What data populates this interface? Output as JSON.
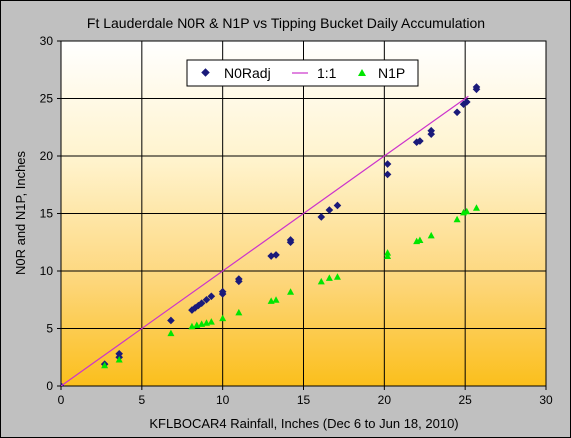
{
  "chart_data": {
    "type": "scatter",
    "title": "Ft Lauderdale N0R & N1P vs Tipping Bucket Daily Accumulation",
    "xlabel": "KFLBOCAR4 Rainfall, Inches (Dec 6 to Jun 18, 2010)",
    "ylabel": "N0R and N1P, Inches",
    "xlim": [
      0,
      30
    ],
    "ylim": [
      0,
      30
    ],
    "xticks": [
      "0",
      "5",
      "10",
      "15",
      "20",
      "25",
      "30"
    ],
    "yticks": [
      "0",
      "5",
      "10",
      "15",
      "20",
      "25",
      "30"
    ],
    "grid": true,
    "legend_position": "top-center",
    "background": "gradient white (top) to orange (bottom)",
    "series": [
      {
        "name": "N0Radj",
        "marker": "diamond",
        "color": "#1a1a7a",
        "points": [
          [
            0,
            0
          ],
          [
            2.7,
            1.9
          ],
          [
            3.6,
            2.5
          ],
          [
            3.6,
            2.8
          ],
          [
            6.8,
            5.7
          ],
          [
            8.1,
            6.6
          ],
          [
            8.3,
            6.8
          ],
          [
            8.5,
            7.0
          ],
          [
            8.7,
            7.2
          ],
          [
            9.0,
            7.5
          ],
          [
            9.3,
            7.8
          ],
          [
            10.0,
            8.0
          ],
          [
            10.0,
            8.2
          ],
          [
            11.0,
            9.1
          ],
          [
            11.0,
            9.3
          ],
          [
            13.0,
            11.3
          ],
          [
            13.3,
            11.4
          ],
          [
            14.2,
            12.5
          ],
          [
            14.2,
            12.7
          ],
          [
            16.1,
            14.7
          ],
          [
            16.6,
            15.3
          ],
          [
            17.1,
            15.7
          ],
          [
            20.2,
            18.4
          ],
          [
            20.2,
            19.3
          ],
          [
            22.0,
            21.2
          ],
          [
            22.2,
            21.3
          ],
          [
            22.9,
            21.9
          ],
          [
            22.9,
            22.2
          ],
          [
            24.5,
            23.8
          ],
          [
            24.9,
            24.5
          ],
          [
            25.1,
            24.7
          ],
          [
            25.7,
            25.8
          ],
          [
            25.7,
            26.0
          ]
        ]
      },
      {
        "name": "1:1",
        "marker": "line",
        "color": "#cc33cc",
        "points": [
          [
            0,
            0
          ],
          [
            25.2,
            25.2
          ]
        ]
      },
      {
        "name": "N1P",
        "marker": "triangle",
        "color": "#00e600",
        "points": [
          [
            2.7,
            1.8
          ],
          [
            3.6,
            2.3
          ],
          [
            6.8,
            4.6
          ],
          [
            8.1,
            5.2
          ],
          [
            8.4,
            5.3
          ],
          [
            8.7,
            5.4
          ],
          [
            9.0,
            5.5
          ],
          [
            9.3,
            5.6
          ],
          [
            10.0,
            5.9
          ],
          [
            11.0,
            6.4
          ],
          [
            13.0,
            7.4
          ],
          [
            13.3,
            7.5
          ],
          [
            14.2,
            8.2
          ],
          [
            16.1,
            9.1
          ],
          [
            16.6,
            9.4
          ],
          [
            17.1,
            9.5
          ],
          [
            20.2,
            11.3
          ],
          [
            20.2,
            11.6
          ],
          [
            22.0,
            12.6
          ],
          [
            22.2,
            12.7
          ],
          [
            22.9,
            13.1
          ],
          [
            24.5,
            14.5
          ],
          [
            24.9,
            15.1
          ],
          [
            25.1,
            15.2
          ],
          [
            25.7,
            15.5
          ]
        ]
      }
    ]
  }
}
